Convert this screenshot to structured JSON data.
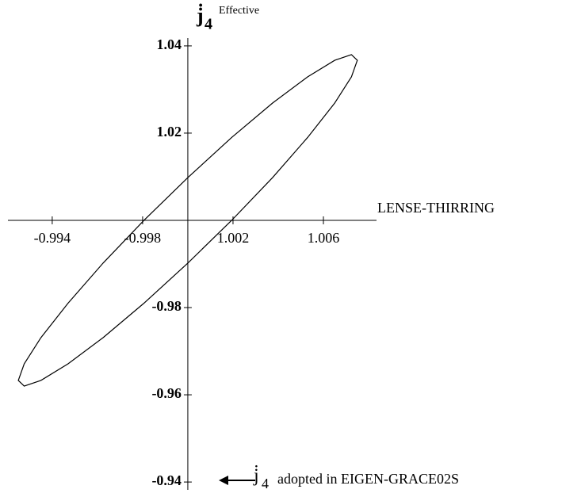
{
  "chart_data": {
    "type": "line",
    "x_label": "LENSE-THIRRING",
    "y_label": {
      "base": "j̇",
      "sub": "4",
      "sup": "Effective"
    },
    "annotation": {
      "base": "j̇",
      "sub": "4",
      "text": "adopted in EIGEN-GRACE02S"
    },
    "axes_origin": [
      1,
      1
    ],
    "xlim": [
      0.99204,
      1.00835
    ],
    "ylim": [
      0.9382,
      1.0418
    ],
    "xticks": [
      {
        "value": 0.994,
        "label": "-0.994"
      },
      {
        "value": 0.998,
        "label": "-0.998"
      },
      1.002,
      1.006
    ],
    "yticks": [
      1.04,
      1.02,
      {
        "value": 0.98,
        "label": "-0.98"
      },
      {
        "value": 0.96,
        "label": "-0.96"
      },
      {
        "value": 0.94,
        "label": "-0.94"
      }
    ],
    "series": [
      {
        "color": "#000000",
        "closed": true,
        "x": [
          1.0075,
          1.00724,
          1.0065,
          1.0053,
          1.00375,
          1.00194,
          1,
          0.99806,
          0.99625,
          0.9947,
          0.9935,
          0.99276,
          0.9925,
          0.99276,
          0.9935,
          0.9947,
          0.99625,
          0.99806,
          1,
          1.00194,
          1.00375,
          1.0053,
          1.0065,
          1.00724
        ],
        "values": [
          1.0367,
          1.038,
          1.0367,
          1.0329,
          1.0269,
          1.019,
          1.0098,
          1,
          0.9902,
          0.981,
          0.9731,
          0.9671,
          0.9633,
          0.962,
          0.9633,
          0.9671,
          0.9731,
          0.981,
          0.9902,
          1,
          1.0098,
          1.019,
          1.0269,
          1.0329
        ]
      }
    ]
  }
}
